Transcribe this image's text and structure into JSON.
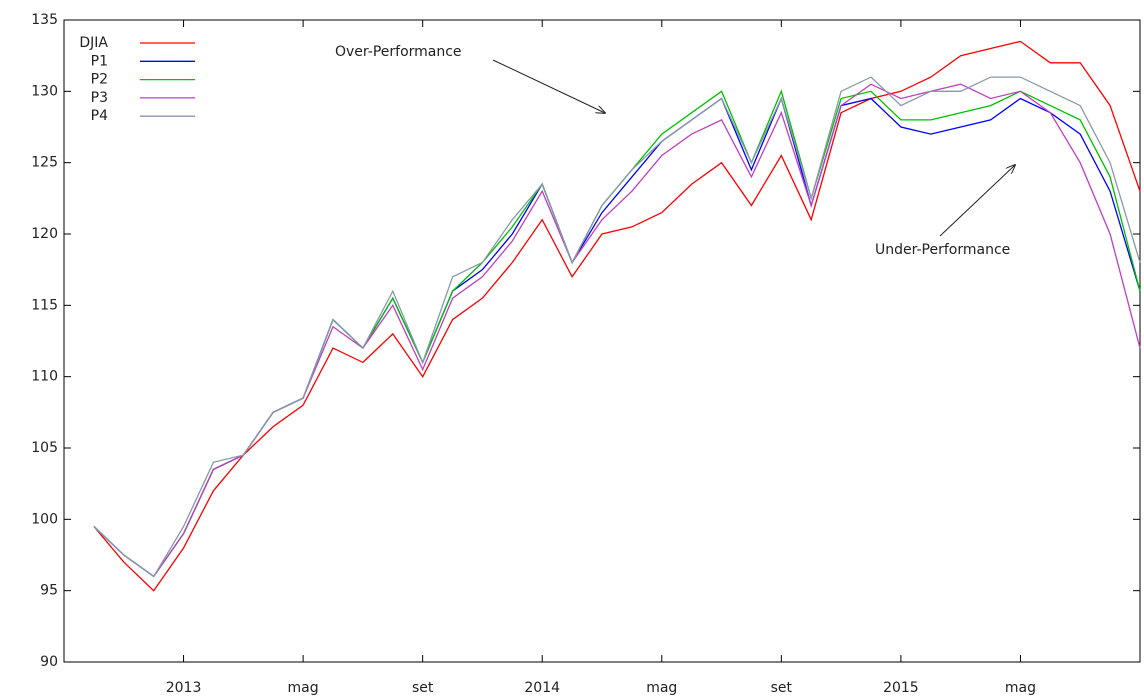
{
  "chart_data": {
    "type": "line",
    "x": [
      "2012-10",
      "2012-11",
      "2012-12",
      "2013-01",
      "2013-02",
      "2013-03",
      "2013-04",
      "2013-05",
      "2013-06",
      "2013-07",
      "2013-08",
      "2013-09",
      "2013-10",
      "2013-11",
      "2013-12",
      "2014-01",
      "2014-02",
      "2014-03",
      "2014-04",
      "2014-05",
      "2014-06",
      "2014-07",
      "2014-08",
      "2014-09",
      "2014-10",
      "2014-11",
      "2014-12",
      "2015-01",
      "2015-02",
      "2015-03",
      "2015-04",
      "2015-05",
      "2015-06",
      "2015-07",
      "2015-08",
      "2015-09"
    ],
    "series": [
      {
        "name": "DJIA",
        "color": "#ff0000",
        "values": [
          99.5,
          97,
          95,
          98,
          102,
          104.5,
          106.5,
          108,
          112,
          111,
          113,
          110,
          114,
          115.5,
          118,
          121,
          117,
          120,
          120.5,
          121.5,
          123.5,
          125,
          122,
          125.5,
          121,
          128.5,
          129.5,
          130,
          131,
          132.5,
          133,
          133.5,
          132,
          132,
          129,
          123
        ]
      },
      {
        "name": "P1",
        "color": "#0000ff",
        "values": [
          99.5,
          97.5,
          96,
          99,
          103.5,
          104.5,
          107.5,
          108.5,
          114,
          112,
          115.5,
          111,
          116,
          117.5,
          120,
          123.5,
          118,
          121.5,
          124,
          126.5,
          128,
          129.5,
          124.5,
          129.5,
          122,
          129,
          129.5,
          127.5,
          127,
          127.5,
          128,
          129.5,
          128.5,
          127,
          123,
          116
        ]
      },
      {
        "name": "P2",
        "color": "#00c000",
        "values": [
          99.5,
          97.5,
          96,
          99,
          103.5,
          104.5,
          107.5,
          108.5,
          114,
          112,
          115.5,
          111,
          116,
          118,
          120.5,
          123.5,
          118,
          122,
          124.5,
          127,
          128.5,
          130,
          125,
          130,
          122.5,
          129.5,
          130,
          128,
          128,
          128.5,
          129,
          130,
          129,
          128,
          124,
          116
        ]
      },
      {
        "name": "P3",
        "color": "#c040c0",
        "values": [
          99.5,
          97.5,
          96,
          99,
          103.5,
          104.5,
          107.5,
          108.5,
          113.5,
          112,
          115,
          110.5,
          115.5,
          117,
          119.5,
          123,
          118,
          121,
          123,
          125.5,
          127,
          128,
          124,
          128.5,
          122,
          129,
          130.5,
          129.5,
          130,
          130.5,
          129.5,
          130,
          128.5,
          125,
          120,
          112
        ]
      },
      {
        "name": "P4",
        "color": "#8899aa",
        "values": [
          99.5,
          97.5,
          96,
          99.5,
          104,
          104.5,
          107.5,
          108.5,
          114,
          112,
          116,
          111,
          117,
          118,
          121,
          123.5,
          118,
          122,
          124.5,
          126.5,
          128,
          129.5,
          125,
          129.5,
          122.5,
          130,
          131,
          129,
          130,
          130,
          131,
          131,
          130,
          129,
          125,
          118
        ]
      }
    ],
    "xlim": [
      "2012-09",
      "2015-09"
    ],
    "xticks": [
      {
        "value": "2013-01",
        "label": "2013"
      },
      {
        "value": "2013-05",
        "label": "mag"
      },
      {
        "value": "2013-09",
        "label": "set"
      },
      {
        "value": "2014-01",
        "label": "2014"
      },
      {
        "value": "2014-05",
        "label": "mag"
      },
      {
        "value": "2014-09",
        "label": "set"
      },
      {
        "value": "2015-01",
        "label": "2015"
      },
      {
        "value": "2015-05",
        "label": "mag"
      }
    ],
    "ylim": [
      90,
      135
    ],
    "yticks": [
      90,
      95,
      100,
      105,
      110,
      115,
      120,
      125,
      130,
      135
    ],
    "annotations": [
      "Over-Performance",
      "Under-Performance"
    ],
    "legend": "top-left"
  }
}
